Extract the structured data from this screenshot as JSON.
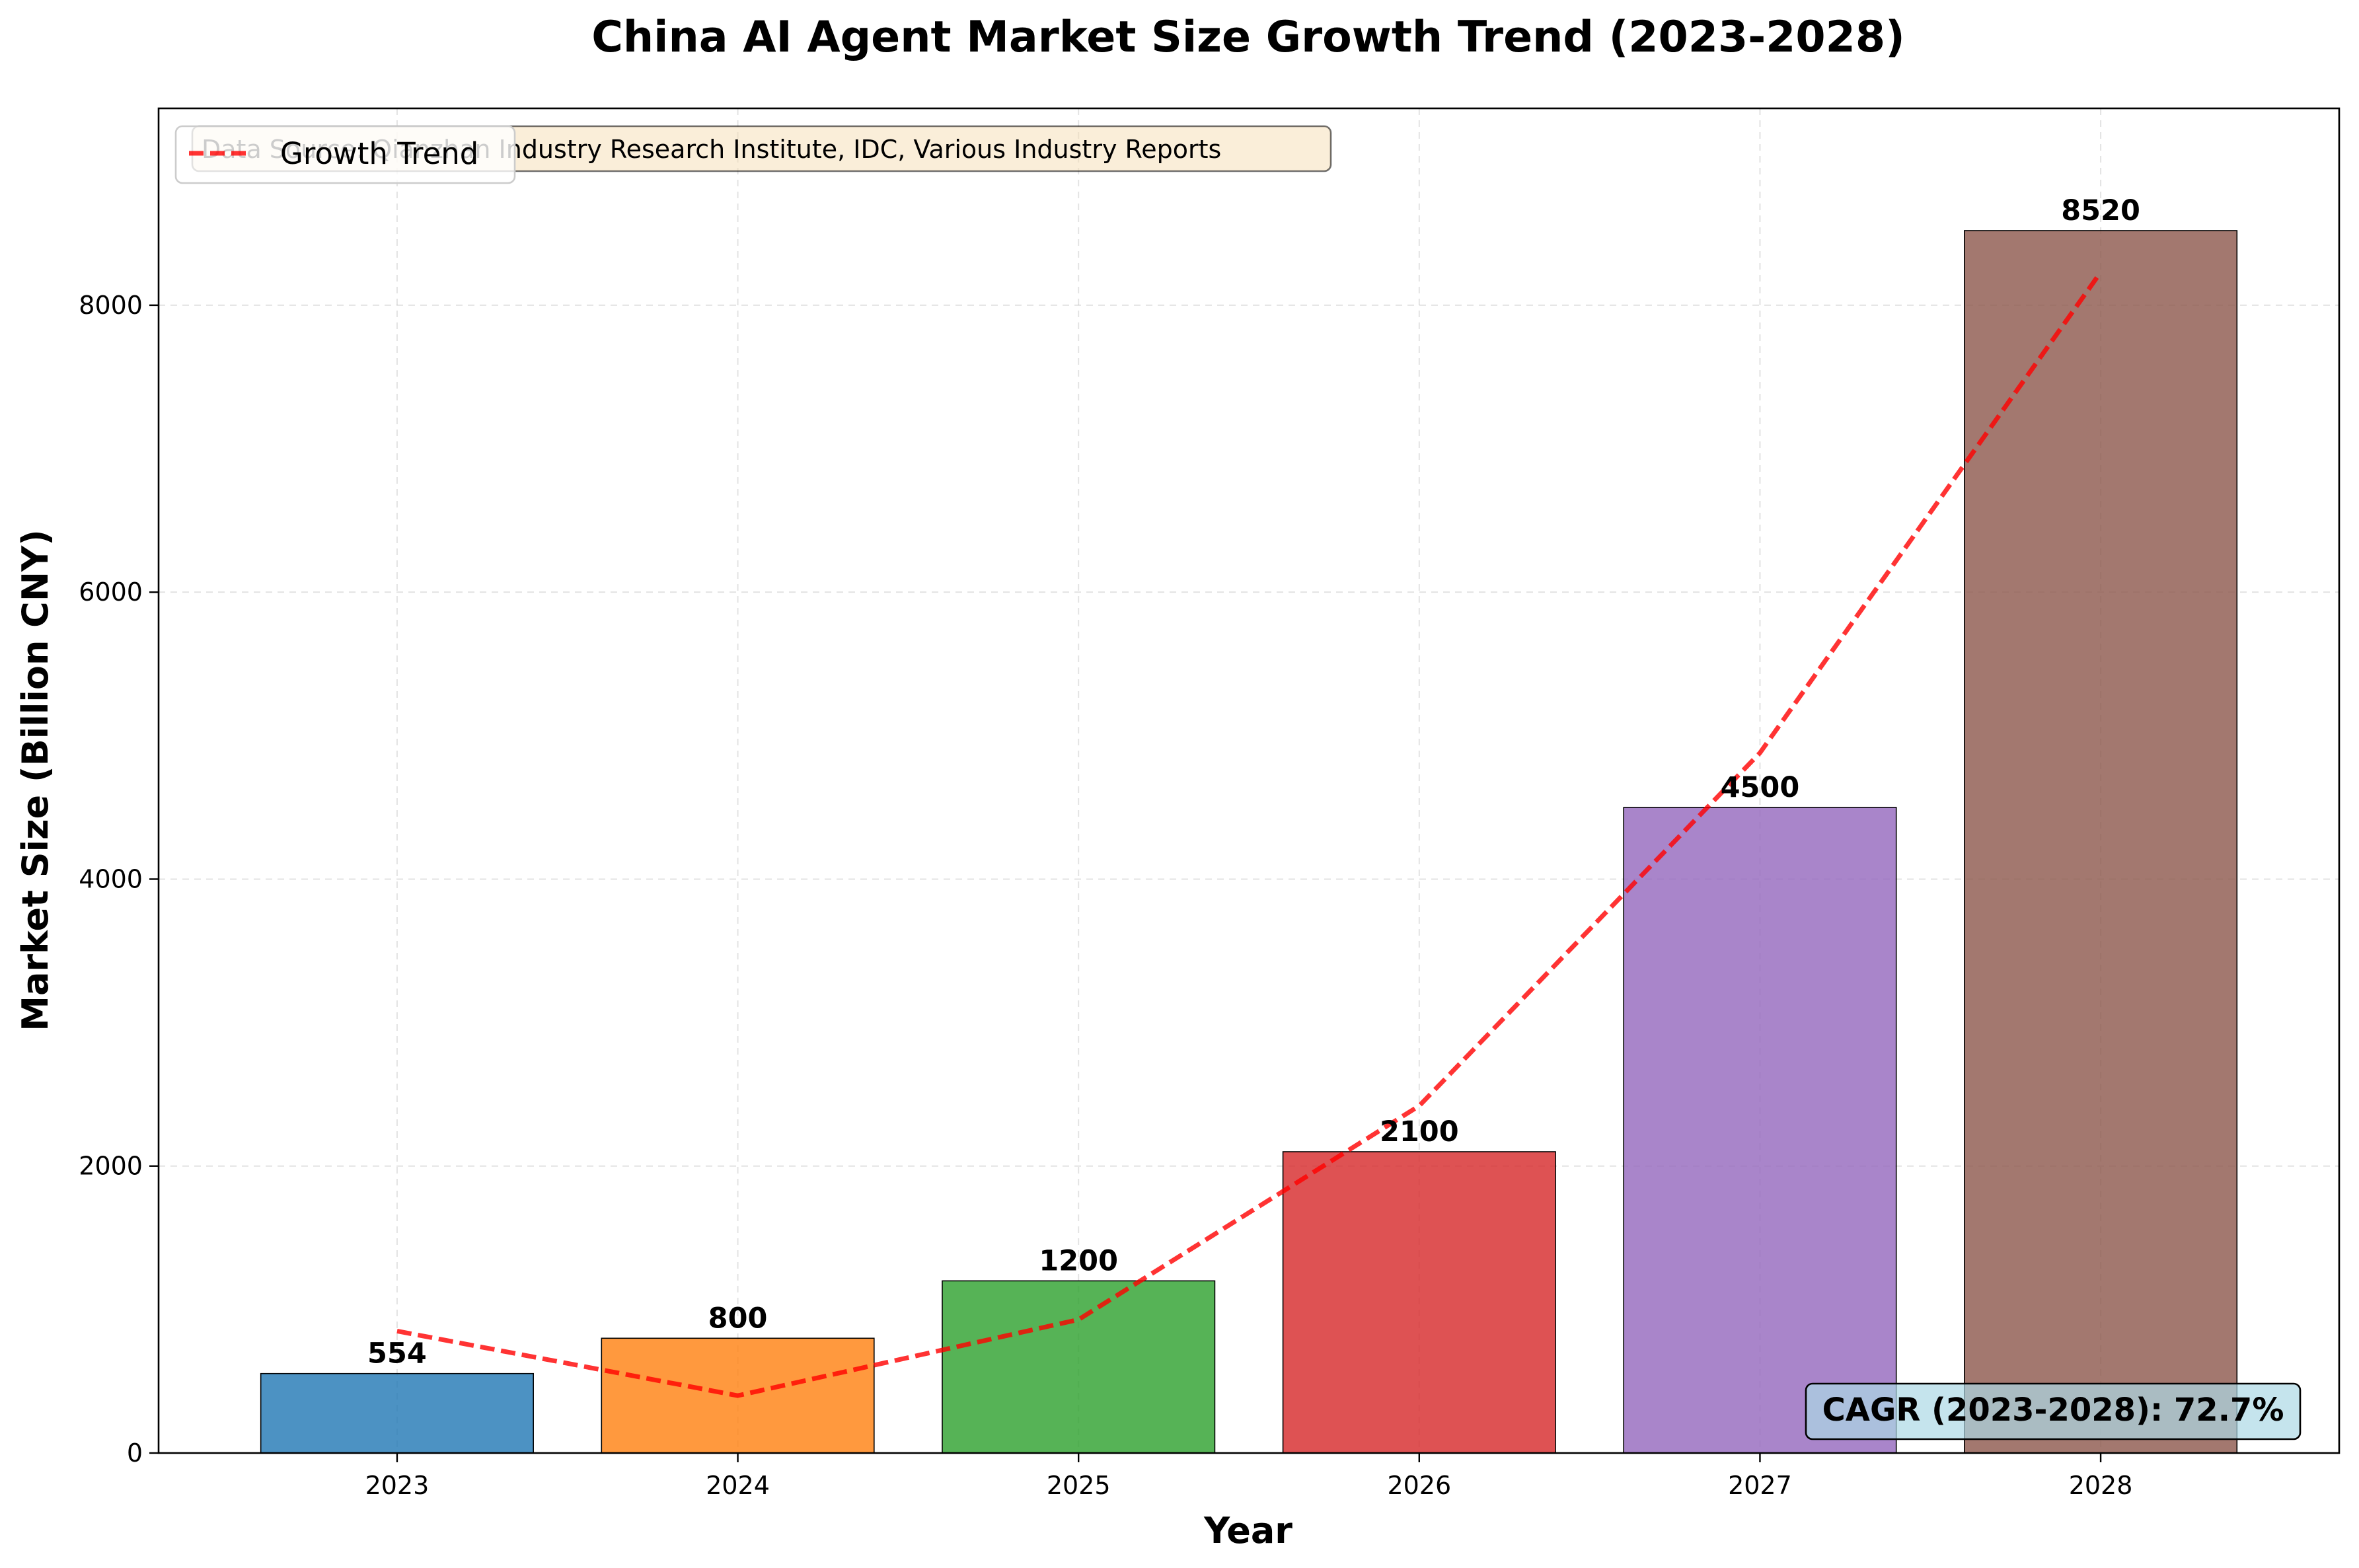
{
  "chart_data": {
    "type": "bar",
    "title": "China AI Agent Market Size Growth Trend (2023-2028)",
    "xlabel": "Year",
    "ylabel": "Market Size (Billion CNY)",
    "categories": [
      "2023",
      "2024",
      "2025",
      "2026",
      "2027",
      "2028"
    ],
    "values": [
      554,
      800,
      1200,
      2100,
      4500,
      8520
    ],
    "colors": [
      "#1f77b4",
      "#ff7f0e",
      "#2ca02c",
      "#d62728",
      "#9467bd",
      "#8c564b"
    ],
    "ylim": [
      0,
      9372
    ],
    "yticks": [
      0,
      2000,
      4000,
      6000,
      8000
    ],
    "grid": true,
    "trend": {
      "name": "Growth Trend",
      "color": "#ff0000",
      "style": "dashed",
      "values": [
        850,
        400,
        930,
        2420,
        4880,
        8230
      ]
    },
    "legend_placement": "top-left",
    "source_note": "Data Source: Qianzhan Industry Research Institute, IDC, Various Industry Reports",
    "cagr_note": "CAGR (2023-2028): 72.7%"
  }
}
